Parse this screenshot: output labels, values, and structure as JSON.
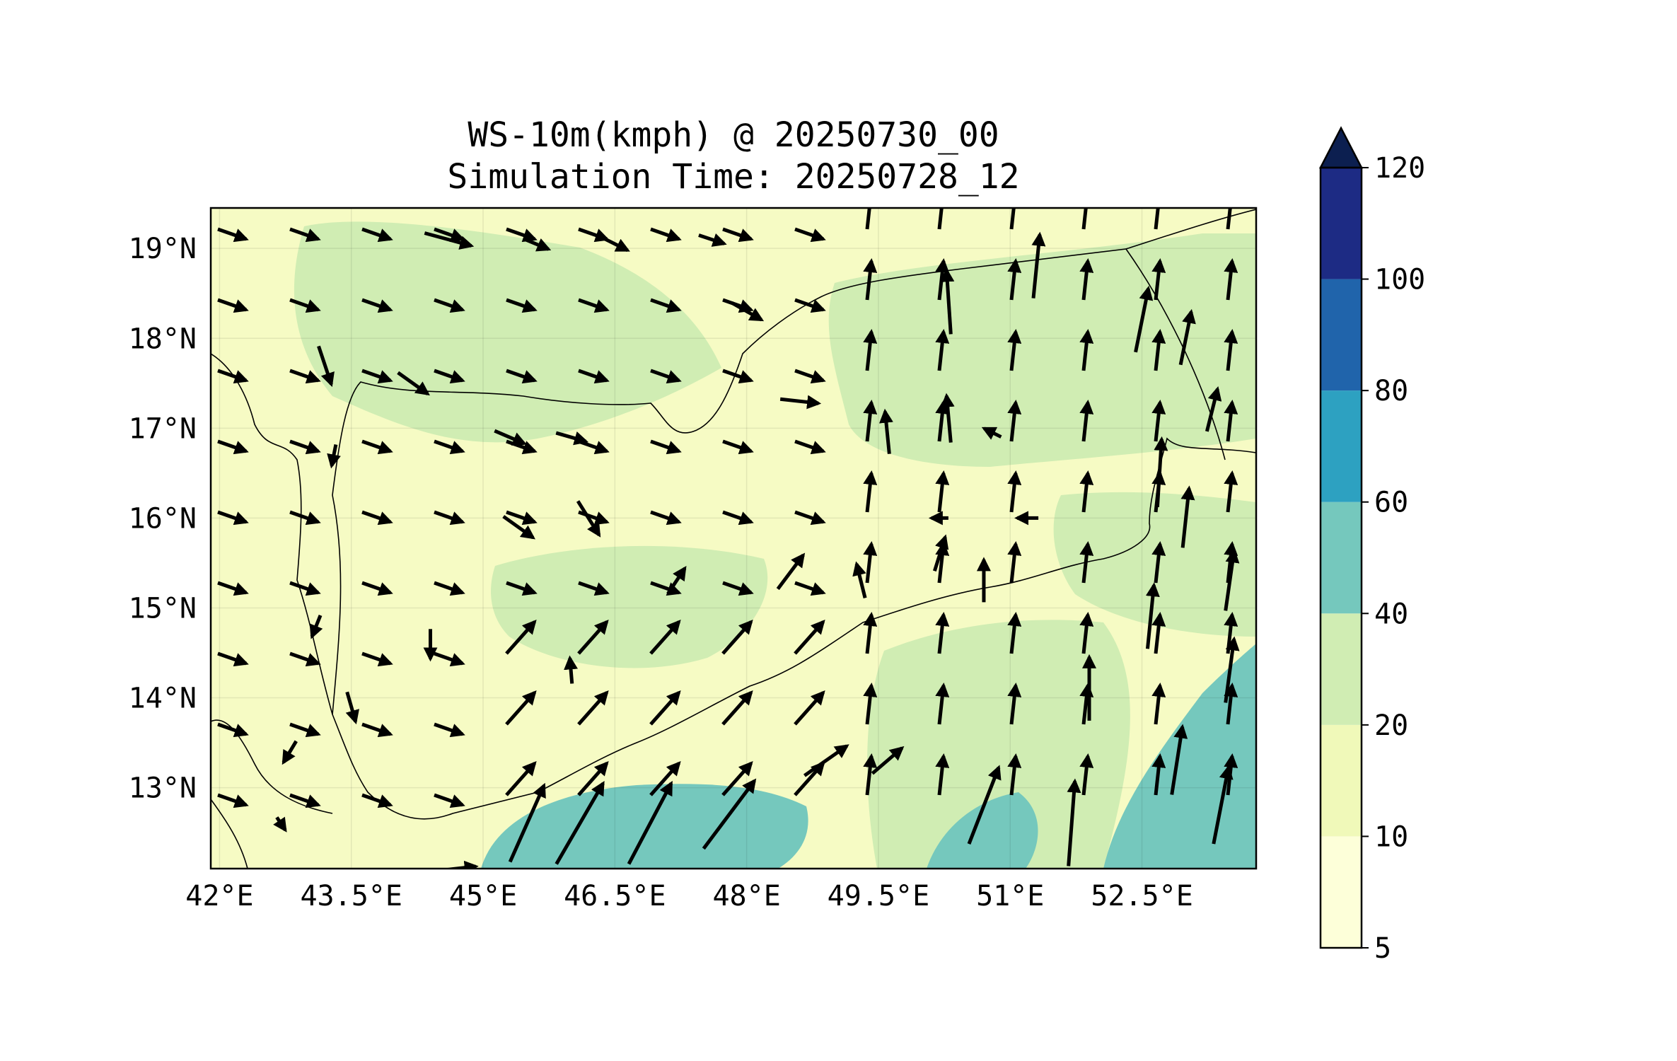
{
  "title": {
    "line1": "WS-10m(kmph) @ 20250730_00",
    "line2": "Simulation Time: 20250728_12"
  },
  "map": {
    "lon_range": [
      41.9,
      53.8
    ],
    "lat_range": [
      12.1,
      19.45
    ],
    "lon_ticks": [
      {
        "value": 42.0,
        "label": "42°E"
      },
      {
        "value": 43.5,
        "label": "43.5°E"
      },
      {
        "value": 45.0,
        "label": "45°E"
      },
      {
        "value": 46.5,
        "label": "46.5°E"
      },
      {
        "value": 48.0,
        "label": "48°E"
      },
      {
        "value": 49.5,
        "label": "49.5°E"
      },
      {
        "value": 51.0,
        "label": "51°E"
      },
      {
        "value": 52.5,
        "label": "52.5°E"
      }
    ],
    "lat_ticks": [
      {
        "value": 19,
        "label": "19°N"
      },
      {
        "value": 18,
        "label": "18°N"
      },
      {
        "value": 17,
        "label": "17°N"
      },
      {
        "value": 16,
        "label": "16°N"
      },
      {
        "value": 15,
        "label": "15°N"
      },
      {
        "value": 14,
        "label": "14°N"
      },
      {
        "value": 13,
        "label": "13°N"
      }
    ],
    "gridlines": true,
    "background_color": "#f6fbc4",
    "line_color": "#000000"
  },
  "colorbar": {
    "levels": [
      5,
      10,
      20,
      40,
      60,
      80,
      100,
      120
    ],
    "labels": [
      "5",
      "10",
      "20",
      "40",
      "60",
      "80",
      "100",
      "120"
    ],
    "colors": [
      "#fdffd9",
      "#f0f9b9",
      "#d0edb3",
      "#75c8bd",
      "#2da1c1",
      "#2064ab",
      "#1d2b84"
    ],
    "extend_color": "#0c1f50",
    "extend": "max"
  },
  "wind_vectors": [
    {
      "lon": 44.6,
      "lat": 19.1,
      "u": 22,
      "v": -6
    },
    {
      "lon": 45.6,
      "lat": 19.05,
      "u": 12,
      "v": -5
    },
    {
      "lon": 46.5,
      "lat": 19.05,
      "u": 12,
      "v": -6
    },
    {
      "lon": 47.6,
      "lat": 19.1,
      "u": 12,
      "v": -4
    },
    {
      "lon": 48.0,
      "lat": 18.3,
      "u": 14,
      "v": -8
    },
    {
      "lon": 48.6,
      "lat": 17.3,
      "u": 18,
      "v": -2
    },
    {
      "lon": 50.3,
      "lat": 18.4,
      "u": -2,
      "v": 30
    },
    {
      "lon": 51.3,
      "lat": 18.8,
      "u": 3,
      "v": 30
    },
    {
      "lon": 52.5,
      "lat": 18.2,
      "u": 6,
      "v": 30
    },
    {
      "lon": 53.0,
      "lat": 18.0,
      "u": 5,
      "v": 25
    },
    {
      "lon": 53.3,
      "lat": 17.2,
      "u": 5,
      "v": 20
    },
    {
      "lon": 52.7,
      "lat": 16.5,
      "u": 2,
      "v": 32
    },
    {
      "lon": 53.0,
      "lat": 16.0,
      "u": 3,
      "v": 28
    },
    {
      "lon": 53.5,
      "lat": 15.3,
      "u": 4,
      "v": 28
    },
    {
      "lon": 52.6,
      "lat": 14.9,
      "u": 3,
      "v": 30
    },
    {
      "lon": 53.5,
      "lat": 14.3,
      "u": 4,
      "v": 30
    },
    {
      "lon": 52.9,
      "lat": 13.3,
      "u": 5,
      "v": 32
    },
    {
      "lon": 53.4,
      "lat": 12.8,
      "u": 7,
      "v": 36
    },
    {
      "lon": 51.9,
      "lat": 14.1,
      "u": 0,
      "v": 30
    },
    {
      "lon": 51.7,
      "lat": 12.6,
      "u": 3,
      "v": 40
    },
    {
      "lon": 50.7,
      "lat": 12.8,
      "u": 14,
      "v": 36
    },
    {
      "lon": 49.6,
      "lat": 13.3,
      "u": 14,
      "v": 12
    },
    {
      "lon": 48.9,
      "lat": 13.3,
      "u": 20,
      "v": 14
    },
    {
      "lon": 47.8,
      "lat": 12.7,
      "u": 24,
      "v": 32
    },
    {
      "lon": 46.9,
      "lat": 12.6,
      "u": 20,
      "v": 38
    },
    {
      "lon": 46.1,
      "lat": 12.6,
      "u": 22,
      "v": 38
    },
    {
      "lon": 45.5,
      "lat": 12.6,
      "u": 16,
      "v": 36
    },
    {
      "lon": 44.7,
      "lat": 12.1,
      "u": 18,
      "v": 2
    },
    {
      "lon": 46.0,
      "lat": 14.3,
      "u": -1,
      "v": 12
    },
    {
      "lon": 47.2,
      "lat": 15.3,
      "u": 8,
      "v": 12
    },
    {
      "lon": 48.5,
      "lat": 15.4,
      "u": 12,
      "v": 16
    },
    {
      "lon": 49.3,
      "lat": 15.3,
      "u": -4,
      "v": 16
    },
    {
      "lon": 50.2,
      "lat": 15.6,
      "u": 5,
      "v": 16
    },
    {
      "lon": 50.7,
      "lat": 15.3,
      "u": 0,
      "v": 20
    },
    {
      "lon": 51.2,
      "lat": 16.0,
      "u": -10,
      "v": 0
    },
    {
      "lon": 50.2,
      "lat": 16.0,
      "u": -8,
      "v": 0
    },
    {
      "lon": 49.6,
      "lat": 16.95,
      "u": -2,
      "v": 20
    },
    {
      "lon": 50.3,
      "lat": 17.1,
      "u": -2,
      "v": 22
    },
    {
      "lon": 50.8,
      "lat": 16.95,
      "u": -8,
      "v": 4
    },
    {
      "lon": 44.2,
      "lat": 17.5,
      "u": 14,
      "v": -10
    },
    {
      "lon": 45.3,
      "lat": 16.9,
      "u": 14,
      "v": -6
    },
    {
      "lon": 46.0,
      "lat": 16.9,
      "u": 14,
      "v": -4
    },
    {
      "lon": 45.4,
      "lat": 15.9,
      "u": 14,
      "v": -10
    },
    {
      "lon": 46.2,
      "lat": 16.0,
      "u": 10,
      "v": -16
    },
    {
      "lon": 43.2,
      "lat": 17.7,
      "u": 6,
      "v": -18
    },
    {
      "lon": 43.3,
      "lat": 16.7,
      "u": -2,
      "v": -10
    },
    {
      "lon": 43.1,
      "lat": 14.8,
      "u": -4,
      "v": -10
    },
    {
      "lon": 44.4,
      "lat": 14.6,
      "u": 0,
      "v": -14
    },
    {
      "lon": 43.5,
      "lat": 13.9,
      "u": 4,
      "v": -14
    },
    {
      "lon": 42.8,
      "lat": 13.4,
      "u": -6,
      "v": -10
    },
    {
      "lon": 42.7,
      "lat": 12.6,
      "u": 4,
      "v": -6
    }
  ]
}
